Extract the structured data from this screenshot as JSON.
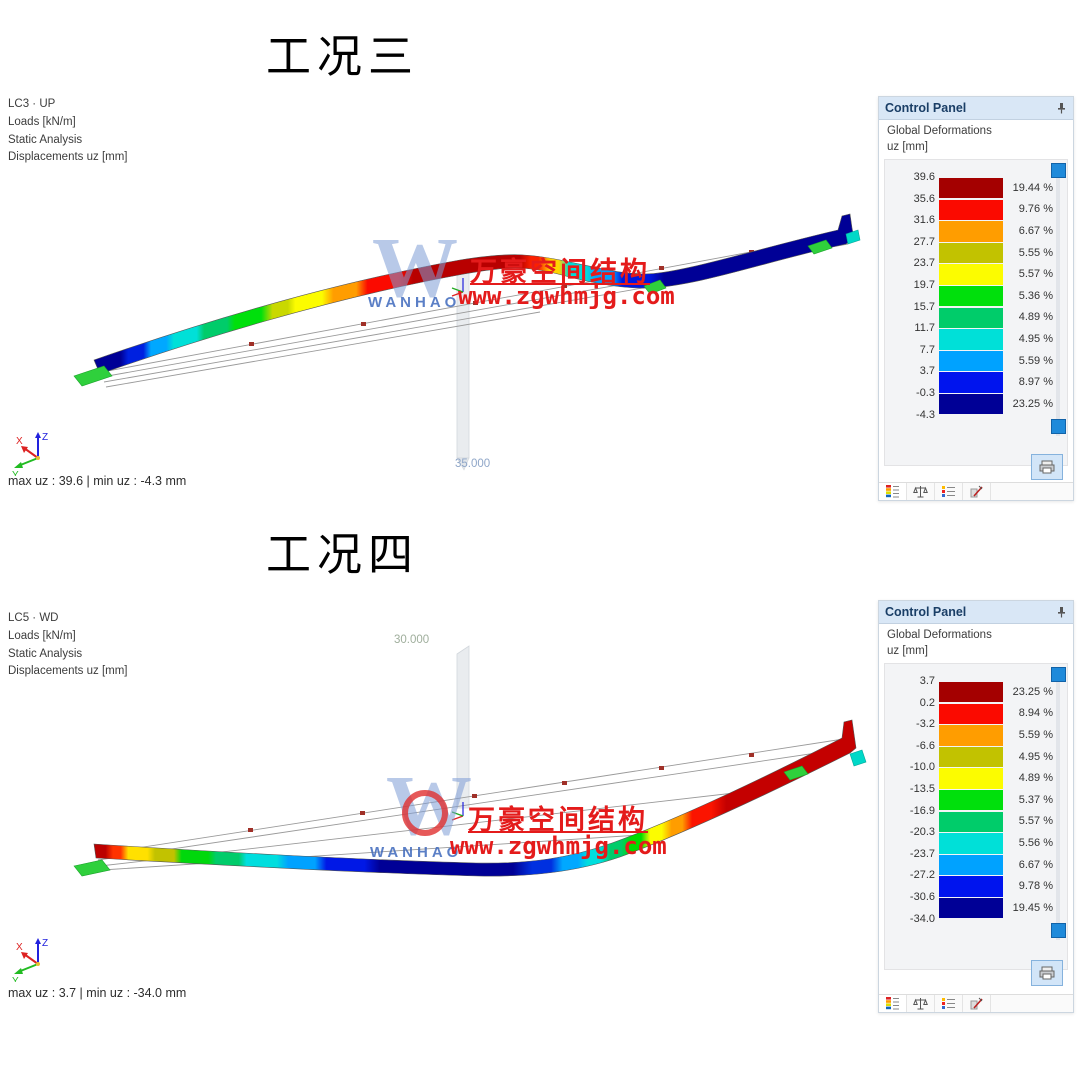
{
  "sections": [
    {
      "title": "工况三",
      "info": {
        "line1": "LC3 · UP",
        "line2": "Loads [kN/m]",
        "line3": "Static Analysis",
        "line4": "Displacements uz [mm]"
      },
      "column_label": "35.000",
      "caption": "max uz : 39.6 | min uz : -4.3 mm",
      "watermark": {
        "logo_letter": "W",
        "brand": "WANHAO",
        "cn": "万豪空间结构",
        "url": "www.zgwhmjg.com"
      },
      "panel": {
        "title": "Control Panel",
        "subtitle1": "Global Deformations",
        "subtitle2": "uz [mm]",
        "scale": {
          "values": [
            "39.6",
            "35.6",
            "31.6",
            "27.7",
            "23.7",
            "19.7",
            "15.7",
            "11.7",
            "7.7",
            "3.7",
            "-0.3",
            "-4.3"
          ],
          "colors": [
            "#a40000",
            "#fb0a00",
            "#ff9d00",
            "#c2c200",
            "#fcfc00",
            "#00e00c",
            "#00cc6a",
            "#00e0d8",
            "#00a2ff",
            "#0014ee",
            "#000096"
          ],
          "percents": [
            "19.44 %",
            "9.76 %",
            "6.67 %",
            "5.55 %",
            "5.57 %",
            "5.36 %",
            "4.89 %",
            "4.95 %",
            "5.59 %",
            "8.97 %",
            "23.25 %"
          ]
        },
        "tabs": [
          "color-scale",
          "scales",
          "legend-list",
          "edit-tools"
        ]
      }
    },
    {
      "title": "工况四",
      "info": {
        "line1": "LC5 · WD",
        "line2": "Loads [kN/m]",
        "line3": "Static Analysis",
        "line4": "Displacements uz [mm]"
      },
      "column_label": "30.000",
      "caption": "max uz : 3.7 | min uz : -34.0 mm",
      "watermark": {
        "logo_letter": "W",
        "brand": "WANHAO",
        "cn": "万豪空间结构",
        "url": "www.zgwhmjg.com"
      },
      "panel": {
        "title": "Control Panel",
        "subtitle1": "Global Deformations",
        "subtitle2": "uz [mm]",
        "scale": {
          "values": [
            "3.7",
            "0.2",
            "-3.2",
            "-6.6",
            "-10.0",
            "-13.5",
            "-16.9",
            "-20.3",
            "-23.7",
            "-27.2",
            "-30.6",
            "-34.0"
          ],
          "colors": [
            "#a40000",
            "#fb0a00",
            "#ff9d00",
            "#c2c200",
            "#fcfc00",
            "#00e00c",
            "#00cc6a",
            "#00e0d8",
            "#00a2ff",
            "#0014ee",
            "#000096"
          ],
          "percents": [
            "23.25 %",
            "8.94 %",
            "5.59 %",
            "4.95 %",
            "4.89 %",
            "5.37 %",
            "5.57 %",
            "5.56 %",
            "6.67 %",
            "9.78 %",
            "19.45 %"
          ]
        },
        "tabs": [
          "color-scale",
          "scales",
          "legend-list",
          "edit-tools"
        ]
      }
    }
  ]
}
